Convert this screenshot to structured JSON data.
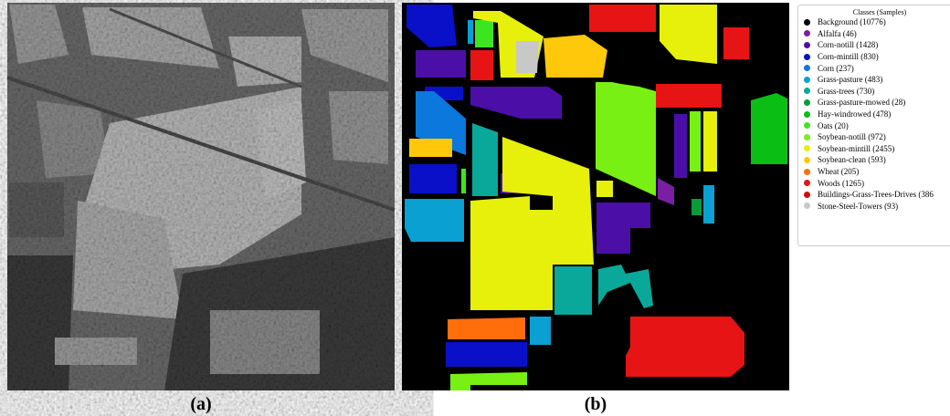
{
  "captions": [
    "(a)",
    "(b)"
  ],
  "legend": {
    "title": "Classes (Samples)",
    "items": [
      {
        "label": "Background (10776)",
        "color": "#000000"
      },
      {
        "label": "Alfalfa (46)",
        "color": "#7a1fa2"
      },
      {
        "label": "Corn-notill (1428)",
        "color": "#4b0fa8"
      },
      {
        "label": "Corn-mintill (830)",
        "color": "#0a10c8"
      },
      {
        "label": "Corn (237)",
        "color": "#0a78dc"
      },
      {
        "label": "Grass-pasture (483)",
        "color": "#0aa0d2"
      },
      {
        "label": "Grass-trees (730)",
        "color": "#0aa89a"
      },
      {
        "label": "Grass-pasture-mowed (28)",
        "color": "#0a9a3a"
      },
      {
        "label": "Hay-windrowed (478)",
        "color": "#0abe14"
      },
      {
        "label": "Oats (20)",
        "color": "#3ce61e"
      },
      {
        "label": "Soybean-notill (972)",
        "color": "#78f014"
      },
      {
        "label": "Soybean-mintill (2455)",
        "color": "#e6f00a"
      },
      {
        "label": "Soybean-clean (593)",
        "color": "#ffc80a"
      },
      {
        "label": "Wheat (205)",
        "color": "#ff6e0a"
      },
      {
        "label": "Woods (1265)",
        "color": "#e61414"
      },
      {
        "label": "Buildings-Grass-Trees-Drives (386",
        "color": "#d20a0a"
      },
      {
        "label": "Stone-Steel-Towers (93)",
        "color": "#c8c8c8"
      }
    ]
  }
}
